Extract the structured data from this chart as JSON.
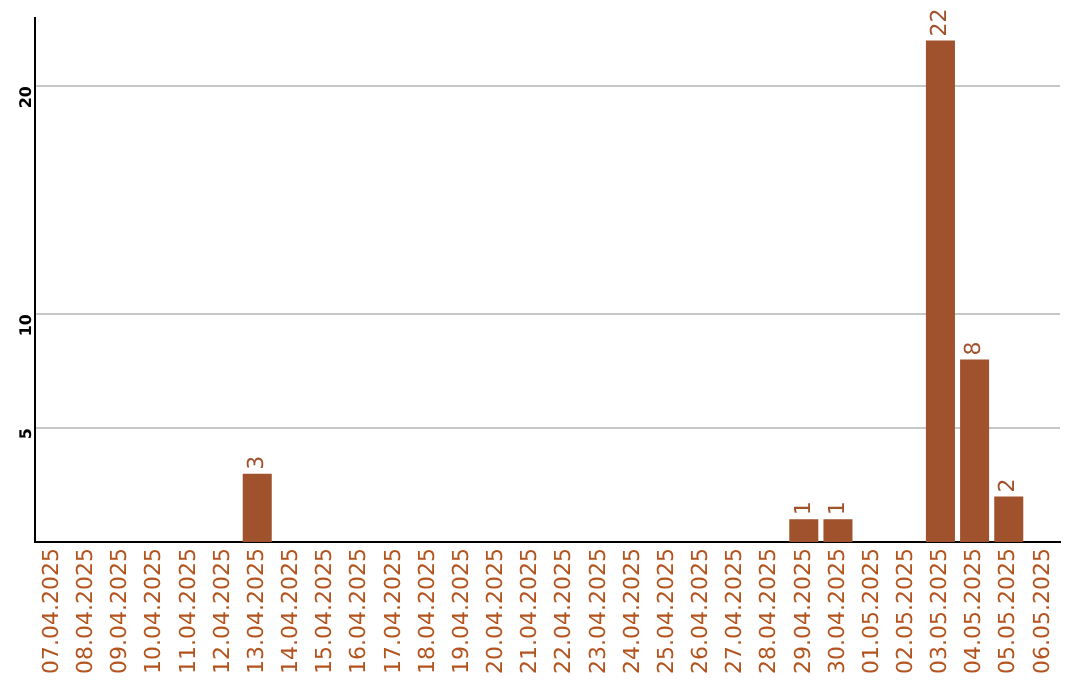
{
  "chart_data": {
    "type": "bar",
    "categories": [
      "07.04.2025",
      "08.04.2025",
      "09.04.2025",
      "10.04.2025",
      "11.04.2025",
      "12.04.2025",
      "13.04.2025",
      "14.04.2025",
      "15.04.2025",
      "16.04.2025",
      "17.04.2025",
      "18.04.2025",
      "19.04.2025",
      "20.04.2025",
      "21.04.2025",
      "22.04.2025",
      "23.04.2025",
      "24.04.2025",
      "25.04.2025",
      "26.04.2025",
      "27.04.2025",
      "28.04.2025",
      "29.04.2025",
      "30.04.2025",
      "01.05.2025",
      "02.05.2025",
      "03.05.2025",
      "04.05.2025",
      "05.05.2025",
      "06.05.2025"
    ],
    "values": [
      0,
      0,
      0,
      0,
      0,
      0,
      3,
      0,
      0,
      0,
      0,
      0,
      0,
      0,
      0,
      0,
      0,
      0,
      0,
      0,
      0,
      0,
      1,
      1,
      0,
      0,
      22,
      8,
      2,
      0
    ],
    "value_labels": [
      null,
      null,
      null,
      null,
      null,
      null,
      "3",
      null,
      null,
      null,
      null,
      null,
      null,
      null,
      null,
      null,
      null,
      null,
      null,
      null,
      null,
      null,
      "1",
      "1",
      null,
      null,
      "22",
      "8",
      "2",
      null
    ],
    "color": "#a0522d",
    "ylim": [
      0,
      23
    ],
    "yticks": [
      5,
      10,
      20
    ],
    "grid": "y",
    "legend": false
  }
}
